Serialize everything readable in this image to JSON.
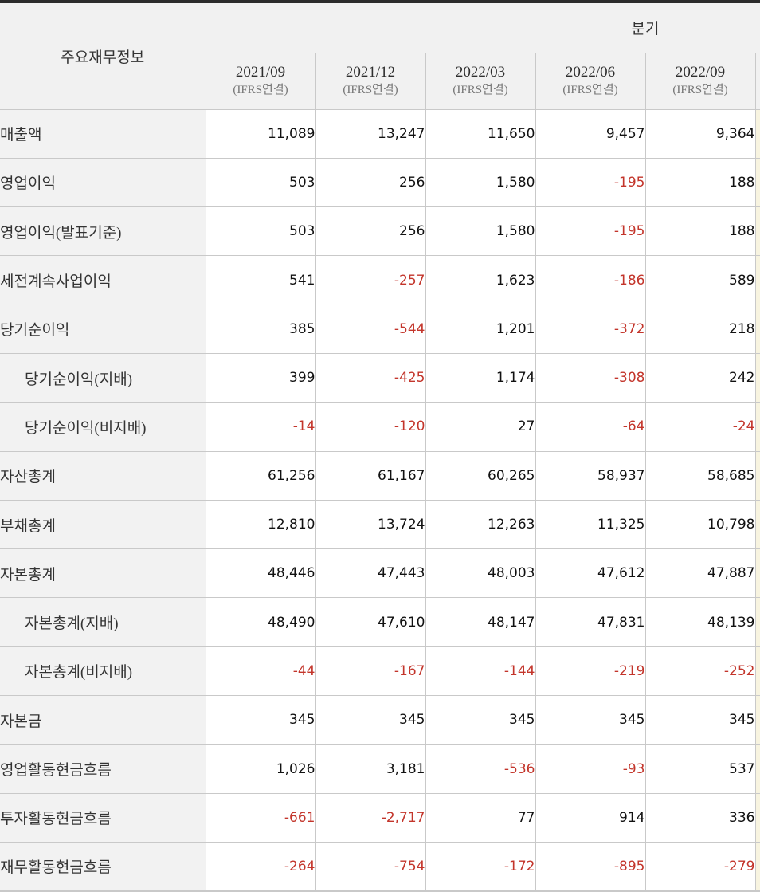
{
  "table": {
    "corner_label": "주요재무정보",
    "group_header": "분기",
    "columns": [
      {
        "period": "2021/09",
        "standard": "(IFRS연결)",
        "clipped": false,
        "estimate": false
      },
      {
        "period": "2021/12",
        "standard": "(IFRS연결)",
        "clipped": false,
        "estimate": false
      },
      {
        "period": "2022/03",
        "standard": "(IFRS연결)",
        "clipped": false,
        "estimate": false
      },
      {
        "period": "2022/06",
        "standard": "(IFRS연결)",
        "clipped": false,
        "estimate": false
      },
      {
        "period": "2022/09",
        "standard": "(IFRS연결)",
        "clipped": false,
        "estimate": false
      },
      {
        "period": "",
        "standard": "",
        "clipped": true,
        "estimate": true
      }
    ],
    "rows": [
      {
        "label": "매출액",
        "indent": false,
        "values": [
          "11,089",
          "13,247",
          "11,650",
          "9,457",
          "9,364",
          ""
        ]
      },
      {
        "label": "영업이익",
        "indent": false,
        "values": [
          "503",
          "256",
          "1,580",
          "-195",
          "188",
          ""
        ]
      },
      {
        "label": "영업이익(발표기준)",
        "indent": false,
        "values": [
          "503",
          "256",
          "1,580",
          "-195",
          "188",
          ""
        ]
      },
      {
        "label": "세전계속사업이익",
        "indent": false,
        "values": [
          "541",
          "-257",
          "1,623",
          "-186",
          "589",
          ""
        ]
      },
      {
        "label": "당기순이익",
        "indent": false,
        "values": [
          "385",
          "-544",
          "1,201",
          "-372",
          "218",
          ""
        ]
      },
      {
        "label": "당기순이익(지배)",
        "indent": true,
        "values": [
          "399",
          "-425",
          "1,174",
          "-308",
          "242",
          ""
        ]
      },
      {
        "label": "당기순이익(비지배)",
        "indent": true,
        "values": [
          "-14",
          "-120",
          "27",
          "-64",
          "-24",
          ""
        ]
      },
      {
        "label": "자산총계",
        "indent": false,
        "values": [
          "61,256",
          "61,167",
          "60,265",
          "58,937",
          "58,685",
          ""
        ]
      },
      {
        "label": "부채총계",
        "indent": false,
        "values": [
          "12,810",
          "13,724",
          "12,263",
          "11,325",
          "10,798",
          ""
        ]
      },
      {
        "label": "자본총계",
        "indent": false,
        "values": [
          "48,446",
          "47,443",
          "48,003",
          "47,612",
          "47,887",
          ""
        ]
      },
      {
        "label": "자본총계(지배)",
        "indent": true,
        "values": [
          "48,490",
          "47,610",
          "48,147",
          "47,831",
          "48,139",
          ""
        ]
      },
      {
        "label": "자본총계(비지배)",
        "indent": true,
        "values": [
          "-44",
          "-167",
          "-144",
          "-219",
          "-252",
          ""
        ]
      },
      {
        "label": "자본금",
        "indent": false,
        "values": [
          "345",
          "345",
          "345",
          "345",
          "345",
          ""
        ]
      },
      {
        "label": "영업활동현금흐름",
        "indent": false,
        "values": [
          "1,026",
          "3,181",
          "-536",
          "-93",
          "537",
          ""
        ]
      },
      {
        "label": "투자활동현금흐름",
        "indent": false,
        "values": [
          "-661",
          "-2,717",
          "77",
          "914",
          "336",
          ""
        ]
      },
      {
        "label": "재무활동현금흐름",
        "indent": false,
        "values": [
          "-264",
          "-754",
          "-172",
          "-895",
          "-279",
          ""
        ]
      }
    ]
  },
  "colors": {
    "negative_value": "#c3352b",
    "positive_value": "#111111",
    "header_bg": "#f1f1f1",
    "label_column_bg": "#f2f2f2",
    "grid_line": "#c9c9c9",
    "top_border": "#2c2c2c",
    "estimate_column_bg": "#f8f4e0"
  }
}
